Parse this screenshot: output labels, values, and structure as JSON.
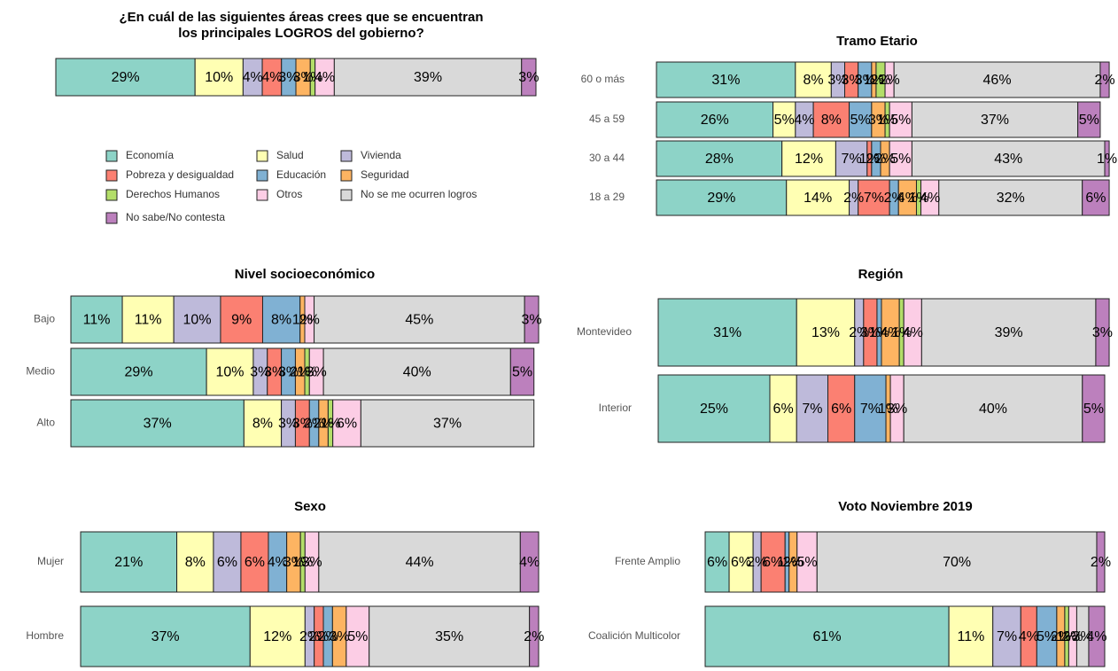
{
  "chart_data": [
    {
      "type": "bar",
      "orientation": "horizontal",
      "stacked": true,
      "legend": true,
      "title": [
        "¿En cuál de las siguientes áreas crees que se encuentran",
        "los principales LOGROS del gobierno?"
      ],
      "categories": [
        null
      ],
      "xlim": [
        0,
        100
      ],
      "series": [
        {
          "name": "Economía",
          "color": "#8dd3c7",
          "values": [
            29
          ],
          "value_labels": [
            "29%"
          ]
        },
        {
          "name": "Salud",
          "color": "#ffffb3",
          "values": [
            10
          ],
          "value_labels": [
            "10%"
          ]
        },
        {
          "name": "Vivienda",
          "color": "#bebada",
          "values": [
            4
          ],
          "value_labels": [
            "4%"
          ]
        },
        {
          "name": "Pobreza y desigualdad",
          "color": "#fb8072",
          "values": [
            4
          ],
          "value_labels": [
            "4%"
          ]
        },
        {
          "name": "Educación",
          "color": "#80b1d3",
          "values": [
            3
          ],
          "value_labels": [
            "3%"
          ]
        },
        {
          "name": "Seguridad",
          "color": "#fdb462",
          "values": [
            3
          ],
          "value_labels": [
            "3%"
          ]
        },
        {
          "name": "Derechos Humanos",
          "color": "#b3de69",
          "values": [
            1
          ],
          "value_labels": [
            "1%"
          ]
        },
        {
          "name": "Otros",
          "color": "#fccde5",
          "values": [
            4
          ],
          "value_labels": [
            "4%"
          ]
        },
        {
          "name": "No se me ocurren logros",
          "color": "#d9d9d9",
          "values": [
            39
          ],
          "value_labels": [
            "39%"
          ]
        },
        {
          "name": "No sabe/No contesta",
          "color": "#bc80bd",
          "values": [
            3
          ],
          "value_labels": [
            "3%"
          ]
        }
      ]
    },
    {
      "type": "bar",
      "orientation": "horizontal",
      "stacked": true,
      "title": "Tramo Etario",
      "categories": [
        "60 o más",
        "45 a 59",
        "30 a 44",
        "18 a 29"
      ],
      "xlim": [
        0,
        100
      ],
      "series": [
        {
          "color": "#8dd3c7",
          "values": [
            31,
            26,
            28,
            29
          ],
          "value_labels": [
            "31%",
            "26%",
            "28%",
            "29%"
          ]
        },
        {
          "color": "#ffffb3",
          "values": [
            8,
            5,
            12,
            14
          ],
          "value_labels": [
            "8%",
            "5%",
            "12%",
            "14%"
          ]
        },
        {
          "color": "#bebada",
          "values": [
            3,
            4,
            7,
            2
          ],
          "value_labels": [
            "3%",
            "4%",
            "7%",
            "2%"
          ]
        },
        {
          "color": "#fb8072",
          "values": [
            3,
            8,
            1,
            7
          ],
          "value_labels": [
            "3%",
            "8%",
            "1%",
            "7%"
          ]
        },
        {
          "color": "#80b1d3",
          "values": [
            3,
            5,
            2,
            2
          ],
          "value_labels": [
            "3%",
            "5%",
            "2%",
            "2%"
          ]
        },
        {
          "color": "#fdb462",
          "values": [
            1,
            3,
            2,
            4
          ],
          "value_labels": [
            "1%",
            "3%",
            "2%",
            "4%"
          ]
        },
        {
          "color": "#b3de69",
          "values": [
            2,
            1,
            0,
            1
          ],
          "value_labels": [
            "2%",
            "1%",
            null,
            "1%"
          ]
        },
        {
          "color": "#fccde5",
          "values": [
            2,
            5,
            5,
            4
          ],
          "value_labels": [
            "2%",
            "5%",
            "5%",
            "4%"
          ]
        },
        {
          "color": "#d9d9d9",
          "values": [
            46,
            37,
            43,
            32
          ],
          "value_labels": [
            "46%",
            "37%",
            "43%",
            "32%"
          ]
        },
        {
          "color": "#bc80bd",
          "values": [
            2,
            5,
            1,
            6
          ],
          "value_labels": [
            "2%",
            "5%",
            "1%",
            "6%"
          ]
        }
      ]
    },
    {
      "type": "bar",
      "orientation": "horizontal",
      "stacked": true,
      "title": "Nivel socioeconómico",
      "categories": [
        "Bajo",
        "Medio",
        "Alto"
      ],
      "xlim": [
        0,
        100
      ],
      "series": [
        {
          "color": "#8dd3c7",
          "values": [
            11,
            29,
            37
          ],
          "value_labels": [
            "11%",
            "29%",
            "37%"
          ]
        },
        {
          "color": "#ffffb3",
          "values": [
            11,
            10,
            8
          ],
          "value_labels": [
            "11%",
            "10%",
            "8%"
          ]
        },
        {
          "color": "#bebada",
          "values": [
            10,
            3,
            3
          ],
          "value_labels": [
            "10%",
            "3%",
            "3%"
          ]
        },
        {
          "color": "#fb8072",
          "values": [
            9,
            3,
            3
          ],
          "value_labels": [
            "9%",
            "3%",
            "3%"
          ]
        },
        {
          "color": "#80b1d3",
          "values": [
            8,
            3,
            2
          ],
          "value_labels": [
            "8%",
            "3%",
            "2%"
          ]
        },
        {
          "color": "#fdb462",
          "values": [
            1,
            2,
            2
          ],
          "value_labels": [
            "1%",
            "2%",
            "2%"
          ]
        },
        {
          "color": "#b3de69",
          "values": [
            0,
            1,
            1
          ],
          "value_labels": [
            null,
            "1%",
            "1%"
          ]
        },
        {
          "color": "#fccde5",
          "values": [
            2,
            3,
            6
          ],
          "value_labels": [
            "2%",
            "3%",
            "6%"
          ]
        },
        {
          "color": "#d9d9d9",
          "values": [
            45,
            40,
            37
          ],
          "value_labels": [
            "45%",
            "40%",
            "37%"
          ]
        },
        {
          "color": "#bc80bd",
          "values": [
            3,
            5,
            0
          ],
          "value_labels": [
            "3%",
            "5%",
            null
          ]
        }
      ]
    },
    {
      "type": "bar",
      "orientation": "horizontal",
      "stacked": true,
      "title": "Región",
      "categories": [
        "Montevideo",
        "Interior"
      ],
      "xlim": [
        0,
        100
      ],
      "series": [
        {
          "color": "#8dd3c7",
          "values": [
            31,
            25
          ],
          "value_labels": [
            "31%",
            "25%"
          ]
        },
        {
          "color": "#ffffb3",
          "values": [
            13,
            6
          ],
          "value_labels": [
            "13%",
            "6%"
          ]
        },
        {
          "color": "#bebada",
          "values": [
            2,
            7
          ],
          "value_labels": [
            "2%",
            "7%"
          ]
        },
        {
          "color": "#fb8072",
          "values": [
            3,
            6
          ],
          "value_labels": [
            "3%",
            "6%"
          ]
        },
        {
          "color": "#80b1d3",
          "values": [
            1,
            7
          ],
          "value_labels": [
            "1%",
            "7%"
          ]
        },
        {
          "color": "#fdb462",
          "values": [
            4,
            1
          ],
          "value_labels": [
            "4%",
            "1%"
          ]
        },
        {
          "color": "#b3de69",
          "values": [
            1,
            0
          ],
          "value_labels": [
            "1%",
            null
          ]
        },
        {
          "color": "#fccde5",
          "values": [
            4,
            3
          ],
          "value_labels": [
            "4%",
            "3%"
          ]
        },
        {
          "color": "#d9d9d9",
          "values": [
            39,
            40
          ],
          "value_labels": [
            "39%",
            "40%"
          ]
        },
        {
          "color": "#bc80bd",
          "values": [
            3,
            5
          ],
          "value_labels": [
            "3%",
            "5%"
          ]
        }
      ]
    },
    {
      "type": "bar",
      "orientation": "horizontal",
      "stacked": true,
      "title": "Sexo",
      "categories": [
        "Mujer",
        "Hombre"
      ],
      "xlim": [
        0,
        100
      ],
      "series": [
        {
          "color": "#8dd3c7",
          "values": [
            21,
            37
          ],
          "value_labels": [
            "21%",
            "37%"
          ]
        },
        {
          "color": "#ffffb3",
          "values": [
            8,
            12
          ],
          "value_labels": [
            "8%",
            "12%"
          ]
        },
        {
          "color": "#bebada",
          "values": [
            6,
            2
          ],
          "value_labels": [
            "6%",
            "2%"
          ]
        },
        {
          "color": "#fb8072",
          "values": [
            6,
            2
          ],
          "value_labels": [
            "6%",
            "2%"
          ]
        },
        {
          "color": "#80b1d3",
          "values": [
            4,
            2
          ],
          "value_labels": [
            "4%",
            "2%"
          ]
        },
        {
          "color": "#fdb462",
          "values": [
            3,
            3
          ],
          "value_labels": [
            "3%",
            "3%"
          ]
        },
        {
          "color": "#b3de69",
          "values": [
            1,
            0
          ],
          "value_labels": [
            "1%",
            null
          ]
        },
        {
          "color": "#fccde5",
          "values": [
            3,
            5
          ],
          "value_labels": [
            "3%",
            "5%"
          ]
        },
        {
          "color": "#d9d9d9",
          "values": [
            44,
            35
          ],
          "value_labels": [
            "44%",
            "35%"
          ]
        },
        {
          "color": "#bc80bd",
          "values": [
            4,
            2
          ],
          "value_labels": [
            "4%",
            "2%"
          ]
        }
      ]
    },
    {
      "type": "bar",
      "orientation": "horizontal",
      "stacked": true,
      "title": "Voto Noviembre 2019",
      "categories": [
        "Frente Amplio",
        "Coalición Multicolor"
      ],
      "xlim": [
        0,
        100
      ],
      "series": [
        {
          "color": "#8dd3c7",
          "values": [
            6,
            61
          ],
          "value_labels": [
            "6%",
            "61%"
          ]
        },
        {
          "color": "#ffffb3",
          "values": [
            6,
            11
          ],
          "value_labels": [
            "6%",
            "11%"
          ]
        },
        {
          "color": "#bebada",
          "values": [
            2,
            7
          ],
          "value_labels": [
            "2%",
            "7%"
          ]
        },
        {
          "color": "#fb8072",
          "values": [
            6,
            4
          ],
          "value_labels": [
            "6%",
            "4%"
          ]
        },
        {
          "color": "#80b1d3",
          "values": [
            1,
            5
          ],
          "value_labels": [
            "1%",
            "5%"
          ]
        },
        {
          "color": "#fdb462",
          "values": [
            2,
            2
          ],
          "value_labels": [
            "2%",
            "2%"
          ]
        },
        {
          "color": "#b3de69",
          "values": [
            0,
            1
          ],
          "value_labels": [
            null,
            "1%"
          ]
        },
        {
          "color": "#fccde5",
          "values": [
            5,
            2
          ],
          "value_labels": [
            "5%",
            "2%"
          ]
        },
        {
          "color": "#d9d9d9",
          "values": [
            70,
            3
          ],
          "value_labels": [
            "70%",
            "3%"
          ]
        },
        {
          "color": "#bc80bd",
          "values": [
            2,
            4
          ],
          "value_labels": [
            "2%",
            "4%"
          ]
        }
      ]
    }
  ]
}
